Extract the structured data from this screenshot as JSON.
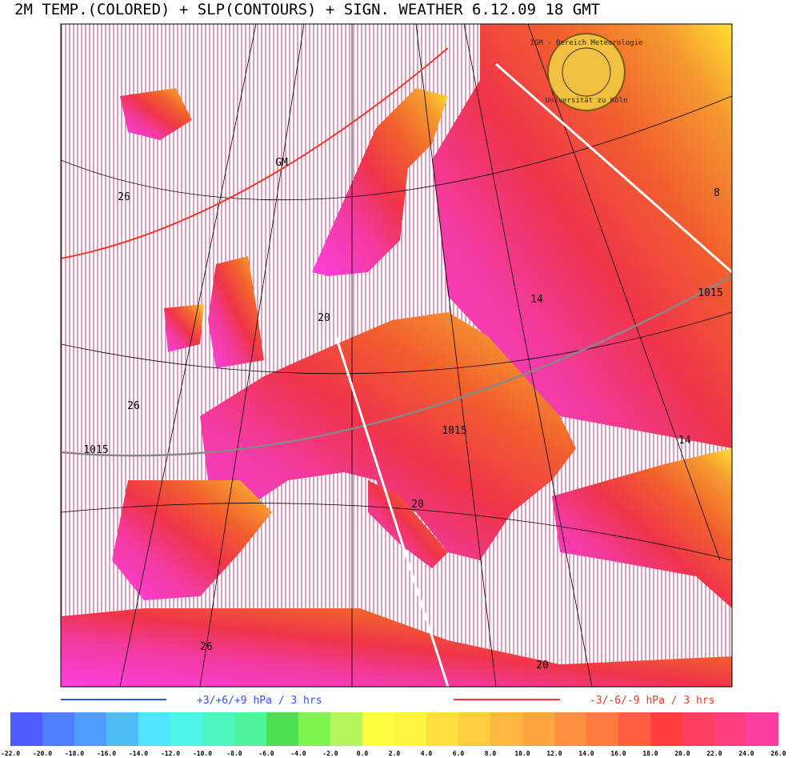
{
  "header": {
    "title": "2M TEMP.(COLORED) + SLP(CONTOURS) + SIGN. WEATHER 6.12.09 18  GMT"
  },
  "logo": {
    "top": "IGM - Bereich Meteorologie",
    "bottom": "Universität zu Köln"
  },
  "contour_labels": [
    "26",
    "GM",
    "8",
    "1015",
    "14",
    "20",
    "26",
    "1015",
    "1015",
    "14",
    "20",
    "26",
    "20"
  ],
  "legend": {
    "rising": "+3/+6/+9 hPa / 3 hrs",
    "falling": "-3/-6/-9 hPa / 3 hrs"
  },
  "colorbar": {
    "labels": [
      "-22.0",
      "-20.0",
      "-18.0",
      "-16.0",
      "-14.0",
      "-12.0",
      "-10.0",
      "-8.0",
      "-6.0",
      "-4.0",
      "-2.0",
      "0.0",
      "2.0",
      "4.0",
      "6.0",
      "8.0",
      "10.0",
      "12.0",
      "14.0",
      "16.0",
      "18.0",
      "20.0",
      "22.0",
      "24.0",
      "26.0"
    ],
    "colors": [
      "#4f5dff",
      "#4f7dff",
      "#4f9dff",
      "#4fbdf5",
      "#4fe5ff",
      "#4ff5e8",
      "#4ff5c0",
      "#4ff59a",
      "#4fe04f",
      "#7ef54f",
      "#b5f55f",
      "#ffff3f",
      "#fff53f",
      "#ffe03f",
      "#ffcc3f",
      "#ffb83f",
      "#ffa53f",
      "#ff903f",
      "#ff7a3f",
      "#ff5f3f",
      "#ff3f3f",
      "#ff3f5f",
      "#ff3f80",
      "#ff3fa0"
    ]
  }
}
